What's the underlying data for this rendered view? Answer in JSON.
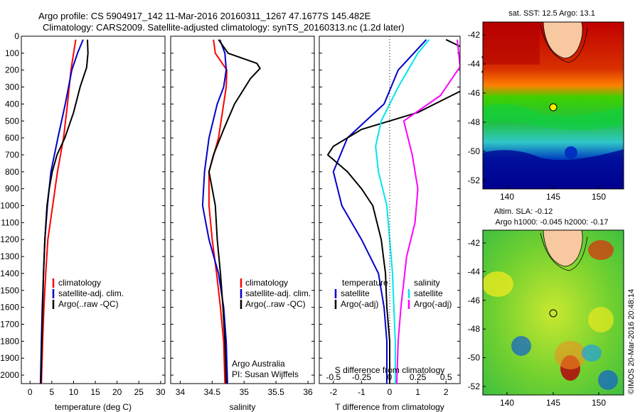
{
  "header": {
    "line1": "Argo profile: CS 5904917_142 11-Mar-2016 20160311_1267 47.1677S 145.482E",
    "line2": "Climatology: CARS2009. Satellite-adjusted climatology: synTS_20160313.nc (1.2d later)"
  },
  "colors": {
    "climatology": "#ff0000",
    "satellite": "#0000cc",
    "argo": "#000000",
    "sat_salinity": "#00e5ee",
    "argo_salinity": "#ff00ff"
  },
  "depth_ticks": [
    0,
    100,
    200,
    300,
    400,
    500,
    600,
    700,
    800,
    900,
    1000,
    1100,
    1200,
    1300,
    1400,
    1500,
    1600,
    1700,
    1800,
    1900,
    2000
  ],
  "legend_main": {
    "climatology": "climatology",
    "satellite": "satellite-adj. clim.",
    "argo": "Argo(..raw -QC)"
  },
  "legend_diff": {
    "temperature_title": "temperature",
    "salinity_title": "salinity",
    "satellite": "satellite",
    "argo": "Argo(-adj)"
  },
  "panel2_note": {
    "line1": "Argo Australia",
    "line2": "PI: Susan Wijffels"
  },
  "map_sst": {
    "title": "sat. SST: 12.5 Argo: 13.1",
    "lat_ticks": [
      "-42",
      "-44",
      "-46",
      "-48",
      "-50",
      "-52"
    ],
    "lon_ticks": [
      "140",
      "145",
      "150"
    ]
  },
  "map_sla": {
    "title1": "Altim. SLA: -0.12",
    "title2": "Argo h1000: -0.045 h2000: -0.17",
    "lat_ticks": [
      "-42",
      "-44",
      "-46",
      "-48",
      "-50",
      "-52"
    ],
    "lon_ticks": [
      "140",
      "145",
      "150"
    ]
  },
  "watermark": "©IMOS 20-Mar-2016 20:48:14",
  "chart_data": [
    {
      "type": "line",
      "xlabel": "temperature (deg C)",
      "x_ticks": [
        0,
        5,
        10,
        15,
        20,
        25,
        30
      ],
      "xlim": [
        -2,
        31
      ],
      "ylim": [
        2050,
        0
      ],
      "series": [
        {
          "name": "climatology",
          "key": "climatology",
          "points": [
            [
              10.5,
              20
            ],
            [
              10,
              100
            ],
            [
              9.4,
              200
            ],
            [
              8.6,
              400
            ],
            [
              7.7,
              600
            ],
            [
              6.3,
              800
            ],
            [
              5.2,
              1000
            ],
            [
              4.1,
              1200
            ],
            [
              3.6,
              1400
            ],
            [
              3.2,
              1600
            ],
            [
              2.9,
              1800
            ],
            [
              2.6,
              2050
            ]
          ]
        },
        {
          "name": "satellite-adj. clim.",
          "key": "satellite",
          "points": [
            [
              12.2,
              20
            ],
            [
              10.9,
              100
            ],
            [
              9.6,
              200
            ],
            [
              8.1,
              400
            ],
            [
              6.4,
              600
            ],
            [
              4.8,
              800
            ],
            [
              4,
              1000
            ],
            [
              3.4,
              1200
            ],
            [
              3.1,
              1400
            ],
            [
              2.8,
              1600
            ],
            [
              2.6,
              1800
            ],
            [
              2.4,
              2050
            ]
          ]
        },
        {
          "name": "Argo(..raw -QC)",
          "key": "argo",
          "points": [
            [
              13.2,
              20
            ],
            [
              13.3,
              100
            ],
            [
              13,
              185
            ],
            [
              11.5,
              300
            ],
            [
              10,
              450
            ],
            [
              8,
              600
            ],
            [
              6.2,
              700
            ],
            [
              5.1,
              800
            ],
            [
              4.4,
              900
            ],
            [
              3.9,
              1000
            ],
            [
              3.4,
              1200
            ],
            [
              3.1,
              1400
            ],
            [
              2.9,
              1600
            ],
            [
              2.7,
              1800
            ],
            [
              2.5,
              2050
            ]
          ]
        }
      ]
    },
    {
      "type": "line",
      "xlabel": "salinity",
      "x_ticks": [
        34,
        34.5,
        35,
        35.5,
        36
      ],
      "x_tick_labels": [
        "34",
        "34.5",
        "35",
        "35.5",
        "36"
      ],
      "xlim": [
        33.85,
        36.1
      ],
      "ylim": [
        2050,
        0
      ],
      "series": [
        {
          "name": "climatology",
          "key": "climatology",
          "points": [
            [
              34.52,
              20
            ],
            [
              34.55,
              100
            ],
            [
              34.73,
              200
            ],
            [
              34.72,
              300
            ],
            [
              34.68,
              400
            ],
            [
              34.6,
              600
            ],
            [
              34.45,
              800
            ],
            [
              34.45,
              1000
            ],
            [
              34.5,
              1200
            ],
            [
              34.57,
              1400
            ],
            [
              34.63,
              1600
            ],
            [
              34.68,
              1800
            ],
            [
              34.7,
              2050
            ]
          ]
        },
        {
          "name": "satellite-adj. clim.",
          "key": "satellite",
          "points": [
            [
              34.62,
              20
            ],
            [
              34.7,
              100
            ],
            [
              34.72,
              200
            ],
            [
              34.68,
              300
            ],
            [
              34.58,
              400
            ],
            [
              34.45,
              600
            ],
            [
              34.38,
              800
            ],
            [
              34.35,
              1000
            ],
            [
              34.45,
              1200
            ],
            [
              34.6,
              1400
            ],
            [
              34.68,
              1600
            ],
            [
              34.72,
              1800
            ],
            [
              34.74,
              2050
            ]
          ]
        },
        {
          "name": "Argo(..raw -QC)",
          "key": "argo",
          "points": [
            [
              34.6,
              20
            ],
            [
              34.75,
              100
            ],
            [
              35.2,
              160
            ],
            [
              35.25,
              190
            ],
            [
              35.1,
              250
            ],
            [
              34.85,
              400
            ],
            [
              34.68,
              550
            ],
            [
              34.52,
              700
            ],
            [
              34.45,
              800
            ],
            [
              34.5,
              900
            ],
            [
              34.55,
              1000
            ],
            [
              34.58,
              1200
            ],
            [
              34.63,
              1400
            ],
            [
              34.67,
              1600
            ],
            [
              34.7,
              1800
            ],
            [
              34.72,
              2050
            ]
          ]
        }
      ]
    },
    {
      "type": "line",
      "xlabel": "T difference from climatology",
      "x2label": "S difference from climatology",
      "x_ticks": [
        -2,
        -1,
        0,
        1,
        2
      ],
      "x2_ticks": [
        -0.5,
        -0.25,
        0,
        0.25,
        0.5
      ],
      "x2_tick_labels": [
        "-0.5",
        "-0.25",
        "0",
        "0.25",
        "0.5"
      ],
      "xlim": [
        -2.5,
        2.5
      ],
      "ylim": [
        2050,
        0
      ],
      "series": [
        {
          "name": "satellite",
          "group": "temperature",
          "key": "satellite",
          "points": [
            [
              1.3,
              20
            ],
            [
              0.3,
              200
            ],
            [
              -0.2,
              400
            ],
            [
              -1.5,
              600
            ],
            [
              -2,
              800
            ],
            [
              -1.7,
              1000
            ],
            [
              -1,
              1200
            ],
            [
              -0.4,
              1400
            ],
            [
              -0.2,
              1600
            ],
            [
              -0.1,
              1800
            ],
            [
              -0.1,
              2050
            ]
          ]
        },
        {
          "name": "Argo(-adj)",
          "group": "temperature",
          "key": "argo",
          "points": [
            [
              2,
              20
            ],
            [
              3,
              100
            ],
            [
              3.6,
              150
            ],
            [
              2.8,
              300
            ],
            [
              1,
              450
            ],
            [
              -1,
              550
            ],
            [
              -2,
              650
            ],
            [
              -2.2,
              700
            ],
            [
              -1.5,
              800
            ],
            [
              -1,
              900
            ],
            [
              -0.6,
              1000
            ],
            [
              -0.3,
              1200
            ],
            [
              -0.15,
              1400
            ],
            [
              -0.1,
              1600
            ],
            [
              0,
              1800
            ],
            [
              0,
              2050
            ]
          ]
        },
        {
          "name": "satellite",
          "group": "salinity",
          "key": "sat_salinity",
          "points": [
            [
              1.4,
              20
            ],
            [
              1,
              100
            ],
            [
              0.3,
              300
            ],
            [
              -0.3,
              500
            ],
            [
              -0.5,
              650
            ],
            [
              -0.4,
              800
            ],
            [
              -0.1,
              1000
            ],
            [
              0,
              1200
            ],
            [
              0.1,
              1400
            ],
            [
              0.15,
              1600
            ],
            [
              0.2,
              1800
            ],
            [
              0.2,
              2050
            ]
          ]
        },
        {
          "name": "Argo(-adj)",
          "group": "salinity",
          "key": "argo_salinity",
          "points": [
            [
              2.4,
              20
            ],
            [
              2.5,
              180
            ],
            [
              1.8,
              350
            ],
            [
              0.5,
              500
            ],
            [
              0.8,
              700
            ],
            [
              1,
              900
            ],
            [
              0.9,
              1100
            ],
            [
              0.6,
              1300
            ],
            [
              0.4,
              1600
            ],
            [
              0.3,
              1800
            ],
            [
              0.25,
              2050
            ]
          ]
        }
      ]
    }
  ]
}
